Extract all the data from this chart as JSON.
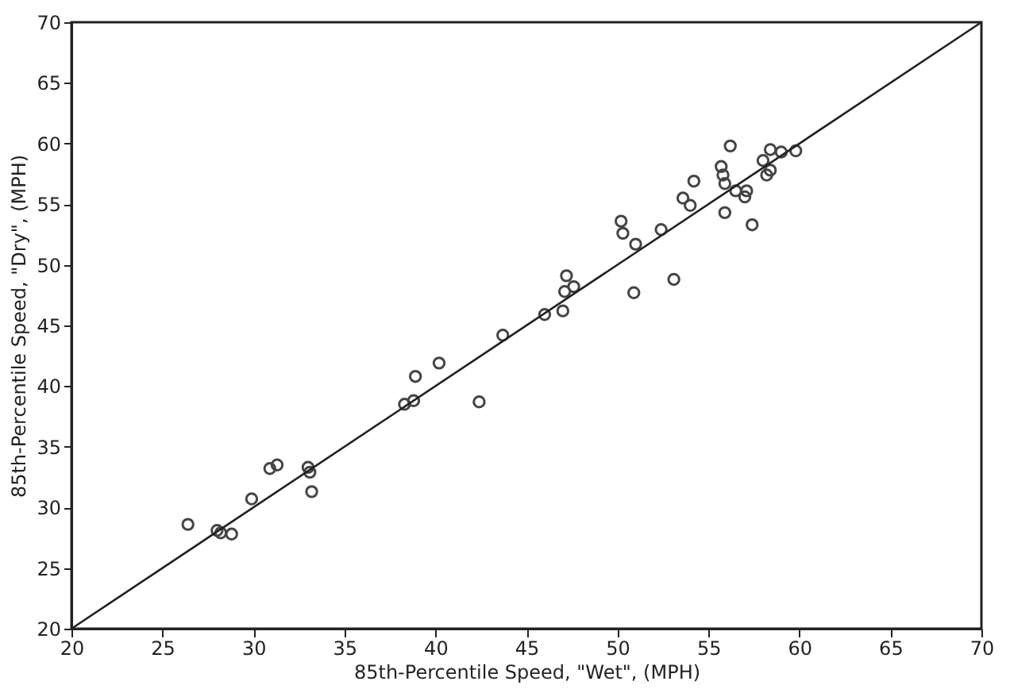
{
  "chart_data": {
    "type": "scatter",
    "xlabel": "85th-Percentile Speed, \"Wet\", (MPH)",
    "ylabel": "85th-Percentile Speed, \"Dry\", (MPH)",
    "xlim": [
      20,
      70
    ],
    "ylim": [
      20,
      70
    ],
    "xticks": [
      20,
      25,
      30,
      35,
      40,
      45,
      50,
      55,
      60,
      65,
      70
    ],
    "yticks": [
      20,
      25,
      30,
      35,
      40,
      45,
      50,
      55,
      60,
      65,
      70
    ],
    "grid": false,
    "marker": "circle",
    "series": [
      {
        "color": "#444444",
        "x": [
          26.4,
          28.0,
          28.2,
          28.8,
          29.9,
          30.9,
          31.3,
          33.0,
          33.1,
          33.2,
          38.3,
          38.8,
          38.9,
          40.2,
          42.4,
          43.7,
          46.0,
          47.0,
          47.1,
          47.6,
          47.2,
          50.9,
          53.1,
          51.0,
          50.2,
          50.3,
          52.4,
          53.6,
          54.0,
          54.2,
          55.9,
          55.7,
          55.8,
          55.9,
          56.2,
          56.5,
          57.1,
          57.0,
          57.4,
          58.0,
          58.2,
          58.4,
          58.4,
          59.0,
          59.8
        ],
        "values": [
          28.6,
          28.1,
          27.9,
          27.8,
          30.7,
          33.2,
          33.5,
          33.3,
          32.9,
          31.3,
          38.5,
          38.8,
          40.8,
          41.9,
          38.7,
          44.2,
          45.9,
          46.2,
          47.8,
          48.2,
          49.1,
          47.7,
          48.8,
          51.7,
          53.6,
          52.6,
          52.9,
          55.5,
          54.9,
          56.9,
          54.3,
          58.1,
          57.4,
          56.7,
          59.8,
          56.1,
          56.1,
          55.6,
          53.3,
          58.6,
          57.4,
          57.8,
          59.5,
          59.3,
          59.4
        ]
      },
      {
        "type": "line",
        "marker": "none",
        "color": "#222222",
        "x": [
          20,
          70
        ],
        "values": [
          20,
          70
        ]
      }
    ]
  }
}
